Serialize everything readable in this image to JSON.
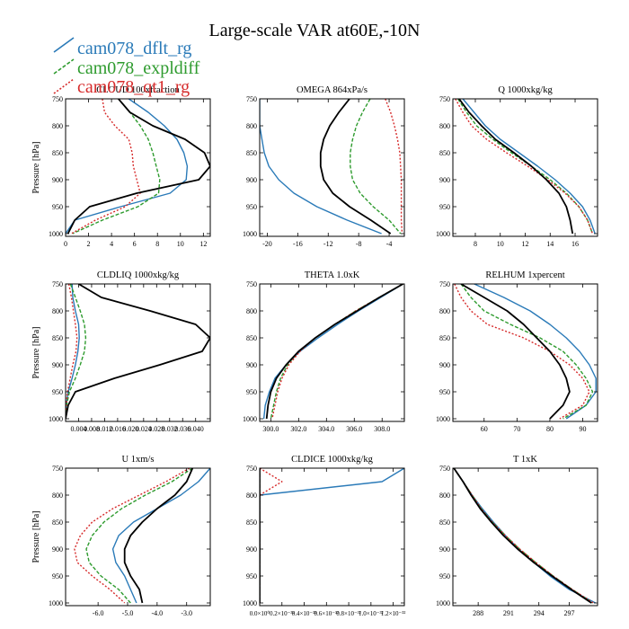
{
  "figure": {
    "title": "Large-scale VAR at60E,-10N",
    "legend": [
      {
        "name": "cam078_dflt_rg",
        "color": "#2a7ab8"
      },
      {
        "name": "cam078_expldiff",
        "color": "#2e9b2e"
      },
      {
        "name": "cam078_qt1_rg",
        "color": "#d62b2b"
      },
      {
        "name": "",
        "color": "#000000"
      }
    ]
  },
  "chart_data": [
    {
      "type": "line",
      "title": "CLOUD 100xfraction",
      "ylabel": "Pressure [hPa]",
      "ylim": [
        750,
        1005
      ],
      "y_ticks": [
        750,
        800,
        850,
        900,
        950,
        1000
      ],
      "y_tick_labels": [
        "750",
        "800",
        "850",
        "900",
        "950",
        "1000"
      ],
      "xlim": [
        0,
        12.6
      ],
      "x_ticks": [
        0,
        2,
        4,
        6,
        8,
        10,
        12
      ],
      "x_tick_labels": [
        "0",
        "2",
        "4",
        "6",
        "8",
        "10",
        "12"
      ],
      "y": [
        750,
        775,
        800,
        825,
        850,
        875,
        900,
        925,
        950,
        975,
        1000
      ],
      "series": [
        {
          "x": [
            5.5,
            7.2,
            8.6,
            9.7,
            10.3,
            10.6,
            10.5,
            9.1,
            4.8,
            0.8,
            0.0
          ],
          "color": "#2a7ab8",
          "dash": false
        },
        {
          "x": [
            4.6,
            5.6,
            6.5,
            7.2,
            7.6,
            7.9,
            8.2,
            8.1,
            6.3,
            3.2,
            0.6
          ],
          "color": "#2e9b2e",
          "dash": true
        },
        {
          "x": [
            3.2,
            3.4,
            4.3,
            5.5,
            5.8,
            5.9,
            6.2,
            6.5,
            5.2,
            2.6,
            0.5
          ],
          "color": "#d62b2b",
          "dash": true
        },
        {
          "x": [
            4.6,
            5.6,
            7.6,
            10.4,
            12.1,
            12.6,
            11.6,
            6.2,
            2.1,
            0.8,
            0.2
          ],
          "color": "#000000",
          "dash": false
        }
      ]
    },
    {
      "type": "line",
      "title": "OMEGA 864xPa/s",
      "ylabel": "",
      "ylim": [
        750,
        1005
      ],
      "y_ticks": [
        750,
        800,
        850,
        900,
        950,
        1000
      ],
      "y_tick_labels": [
        "750",
        "800",
        "850",
        "900",
        "950",
        "1000"
      ],
      "xlim": [
        -21,
        -2
      ],
      "x_ticks": [
        -20,
        -16,
        -12,
        -8,
        -4
      ],
      "x_tick_labels": [
        "-20",
        "-16",
        "-12",
        "-8",
        "-4"
      ],
      "y": [
        750,
        775,
        800,
        825,
        850,
        875,
        900,
        925,
        950,
        975,
        1000
      ],
      "series": [
        {
          "x": [
            -21,
            -21,
            -21,
            -20.7,
            -20.4,
            -19.8,
            -18.5,
            -16.5,
            -13.5,
            -9.5,
            -5.0
          ],
          "color": "#2a7ab8",
          "dash": false
        },
        {
          "x": [
            -6.5,
            -7.5,
            -8.3,
            -8.8,
            -9.1,
            -9.1,
            -8.8,
            -7.8,
            -6.1,
            -4.0,
            -2.5
          ],
          "color": "#2e9b2e",
          "dash": true
        },
        {
          "x": [
            -4.5,
            -3.8,
            -3.3,
            -2.9,
            -2.6,
            -2.5,
            -2.4,
            -2.4,
            -2.4,
            -2.4,
            -2.3
          ],
          "color": "#d62b2b",
          "dash": true
        },
        {
          "x": [
            -9.2,
            -10.6,
            -11.8,
            -12.6,
            -13.0,
            -13.0,
            -12.6,
            -11.4,
            -9.2,
            -6.4,
            -3.8
          ],
          "color": "#000000",
          "dash": false
        }
      ]
    },
    {
      "type": "line",
      "title": "Q 1000xkg/kg",
      "ylabel": "",
      "ylim": [
        750,
        1005
      ],
      "y_ticks": [
        750,
        800,
        850,
        900,
        950,
        1000
      ],
      "y_tick_labels": [
        "750",
        "800",
        "850",
        "900",
        "950",
        "1000"
      ],
      "xlim": [
        6.2,
        17.8
      ],
      "x_ticks": [
        8,
        10,
        12,
        14,
        16
      ],
      "x_tick_labels": [
        "8",
        "10",
        "12",
        "14",
        "16"
      ],
      "y": [
        750,
        775,
        800,
        825,
        850,
        875,
        900,
        925,
        950,
        975,
        1000
      ],
      "series": [
        {
          "x": [
            7.0,
            7.9,
            8.8,
            10.0,
            11.5,
            13.0,
            14.4,
            15.6,
            16.6,
            17.2,
            17.6
          ],
          "color": "#2a7ab8",
          "dash": false
        },
        {
          "x": [
            6.6,
            7.3,
            8.1,
            9.4,
            10.9,
            12.5,
            14.0,
            15.3,
            16.3,
            17.0,
            17.4
          ],
          "color": "#2e9b2e",
          "dash": true
        },
        {
          "x": [
            6.4,
            7.0,
            7.7,
            8.9,
            10.5,
            12.2,
            13.8,
            15.2,
            16.3,
            17.0,
            17.4
          ],
          "color": "#d62b2b",
          "dash": true
        },
        {
          "x": [
            6.7,
            7.5,
            8.5,
            9.6,
            11.1,
            12.5,
            13.7,
            14.7,
            15.3,
            15.6,
            15.8
          ],
          "color": "#000000",
          "dash": false
        }
      ]
    },
    {
      "type": "line",
      "title": "CLDLIQ 1000xkg/kg",
      "ylabel": "Pressure [hPa]",
      "ylim": [
        750,
        1005
      ],
      "y_ticks": [
        750,
        800,
        850,
        900,
        950,
        1000
      ],
      "y_tick_labels": [
        "750",
        "800",
        "850",
        "900",
        "950",
        "1000"
      ],
      "xlim": [
        0,
        0.0445
      ],
      "x_ticks": [
        0.004,
        0.008,
        0.012,
        0.016,
        0.02,
        0.024,
        0.028,
        0.032,
        0.036,
        0.04
      ],
      "x_tick_labels": [
        "0.004",
        "0.008",
        "0.012",
        "0.016",
        "0.020",
        "0.024",
        "0.028",
        "0.032",
        "0.036",
        "0.040"
      ],
      "y": [
        750,
        775,
        800,
        825,
        850,
        875,
        900,
        925,
        950,
        975,
        1000
      ],
      "series": [
        {
          "x": [
            0.002,
            0.0022,
            0.003,
            0.004,
            0.0042,
            0.0038,
            0.003,
            0.002,
            0.0008,
            0.0002,
            0.0
          ],
          "color": "#2a7ab8",
          "dash": false
        },
        {
          "x": [
            0.0015,
            0.003,
            0.0045,
            0.0058,
            0.0062,
            0.0058,
            0.0045,
            0.003,
            0.0012,
            0.0003,
            0.0
          ],
          "color": "#2e9b2e",
          "dash": true
        },
        {
          "x": [
            0.001,
            0.0018,
            0.0024,
            0.003,
            0.0035,
            0.0032,
            0.0022,
            0.0014,
            0.0006,
            0.0002,
            0.0
          ],
          "color": "#d62b2b",
          "dash": true
        },
        {
          "x": [
            0.004,
            0.011,
            0.026,
            0.04,
            0.0445,
            0.042,
            0.029,
            0.015,
            0.003,
            0.0008,
            0.0
          ],
          "color": "#000000",
          "dash": false
        }
      ]
    },
    {
      "type": "line",
      "title": "THETA 1.0xK",
      "ylabel": "",
      "ylim": [
        750,
        1005
      ],
      "y_ticks": [
        750,
        800,
        850,
        900,
        950,
        1000
      ],
      "y_tick_labels": [
        "750",
        "800",
        "850",
        "900",
        "950",
        "1000"
      ],
      "xlim": [
        299.2,
        309.6
      ],
      "x_ticks": [
        300.0,
        302.0,
        304.0,
        306.0,
        308.0
      ],
      "x_tick_labels": [
        "300.0",
        "302.0",
        "304.0",
        "306.0",
        "308.0"
      ],
      "y": [
        750,
        775,
        800,
        825,
        850,
        875,
        900,
        925,
        950,
        975,
        1000
      ],
      "series": [
        {
          "x": [
            309.5,
            307.9,
            306.3,
            304.8,
            303.4,
            302.1,
            301.1,
            300.3,
            299.9,
            299.6,
            299.5
          ],
          "color": "#2a7ab8",
          "dash": false
        },
        {
          "x": [
            309.5,
            307.8,
            306.1,
            304.6,
            303.2,
            302.0,
            301.2,
            300.7,
            300.4,
            300.2,
            300.0
          ],
          "color": "#2e9b2e",
          "dash": true
        },
        {
          "x": [
            309.5,
            307.8,
            306.1,
            304.6,
            303.2,
            302.1,
            301.3,
            300.8,
            300.5,
            300.3,
            300.1
          ],
          "color": "#d62b2b",
          "dash": true
        },
        {
          "x": [
            309.5,
            307.8,
            306.2,
            304.6,
            303.2,
            302.0,
            301.1,
            300.4,
            300.0,
            299.8,
            299.7
          ],
          "color": "#000000",
          "dash": false
        }
      ]
    },
    {
      "type": "line",
      "title": "RELHUM 1xpercent",
      "ylabel": "",
      "ylim": [
        750,
        1005
      ],
      "y_ticks": [
        750,
        800,
        850,
        900,
        950,
        1000
      ],
      "y_tick_labels": [
        "750",
        "800",
        "850",
        "900",
        "950",
        "1000"
      ],
      "xlim": [
        50.5,
        94.5
      ],
      "x_ticks": [
        60,
        70,
        80,
        90
      ],
      "x_tick_labels": [
        "60",
        "70",
        "80",
        "90"
      ],
      "y": [
        750,
        775,
        800,
        825,
        850,
        875,
        900,
        925,
        950,
        975,
        1000
      ],
      "series": [
        {
          "x": [
            57,
            66,
            74,
            80,
            85,
            89,
            92,
            94,
            94,
            91,
            85
          ],
          "color": "#2a7ab8",
          "dash": false
        },
        {
          "x": [
            53,
            56,
            60,
            68,
            77,
            84,
            88,
            91,
            93,
            91,
            84
          ],
          "color": "#2e9b2e",
          "dash": true
        },
        {
          "x": [
            51,
            53,
            56,
            61,
            72,
            80,
            86,
            90,
            92,
            90,
            83
          ],
          "color": "#d62b2b",
          "dash": true
        },
        {
          "x": [
            53,
            60,
            67,
            72,
            76,
            80,
            83,
            85,
            86,
            84,
            80
          ],
          "color": "#000000",
          "dash": false
        }
      ]
    },
    {
      "type": "line",
      "title": "U 1xm/s",
      "ylabel": "Pressure [hPa]",
      "ylim": [
        750,
        1005
      ],
      "y_ticks": [
        750,
        800,
        850,
        900,
        950,
        1000
      ],
      "y_tick_labels": [
        "750",
        "800",
        "850",
        "900",
        "950",
        "1000"
      ],
      "xlim": [
        -7.1,
        -2.2
      ],
      "x_ticks": [
        -6.0,
        -5.0,
        -4.0,
        -3.0
      ],
      "x_tick_labels": [
        "-6.0",
        "-5.0",
        "-4.0",
        "-3.0"
      ],
      "y": [
        750,
        775,
        800,
        825,
        850,
        875,
        900,
        925,
        950,
        975,
        1000
      ],
      "series": [
        {
          "x": [
            -2.2,
            -2.6,
            -3.2,
            -4.0,
            -4.8,
            -5.3,
            -5.5,
            -5.4,
            -5.1,
            -4.9,
            -4.7
          ],
          "color": "#2a7ab8",
          "dash": false
        },
        {
          "x": [
            -2.8,
            -3.5,
            -4.4,
            -5.2,
            -5.8,
            -6.2,
            -6.4,
            -6.3,
            -5.9,
            -5.3,
            -4.9
          ],
          "color": "#2e9b2e",
          "dash": true
        },
        {
          "x": [
            -2.9,
            -3.7,
            -4.6,
            -5.5,
            -6.2,
            -6.6,
            -6.8,
            -6.7,
            -6.2,
            -5.6,
            -5.1
          ],
          "color": "#d62b2b",
          "dash": true
        },
        {
          "x": [
            -2.8,
            -3.0,
            -3.4,
            -4.0,
            -4.5,
            -4.9,
            -5.1,
            -5.1,
            -4.9,
            -4.6,
            -4.5
          ],
          "color": "#000000",
          "dash": false
        }
      ]
    },
    {
      "type": "line",
      "title": "CLDICE 1000xkg/kg",
      "ylabel": "",
      "ylim": [
        750,
        1005
      ],
      "y_ticks": [
        750,
        800,
        850,
        900,
        950,
        1000
      ],
      "y_tick_labels": [
        "750",
        "800",
        "850",
        "900",
        "950",
        "1000"
      ],
      "xlim": [
        0,
        1.3e-32
      ],
      "x_ticks": [
        0,
        2e-33,
        4e-33,
        6e-33,
        8e-33,
        1e-32,
        1.2e-32
      ],
      "x_tick_labels": [
        "0.0×10⁰",
        "0.2×10⁻³²",
        "0.4×10⁻³²",
        "0.6×10⁻³²",
        "0.8×10⁻³²",
        "1.0×10⁻³²",
        "1.2×10⁻³²"
      ],
      "y": [
        750,
        775,
        800,
        825,
        850,
        875,
        900,
        925,
        950,
        975,
        1000
      ],
      "series": [
        {
          "x": [
            1.3e-32,
            1.1e-32,
            0,
            0,
            0,
            0,
            0,
            0,
            0,
            0,
            0
          ],
          "color": "#2a7ab8",
          "dash": false
        },
        {
          "x": [
            0,
            0,
            0,
            0,
            0,
            0,
            0,
            0,
            0,
            0,
            0
          ],
          "color": "#2e9b2e",
          "dash": true
        },
        {
          "x": [
            0,
            2e-33,
            0,
            0,
            0,
            0,
            0,
            0,
            0,
            0,
            0
          ],
          "color": "#d62b2b",
          "dash": true
        },
        {
          "x": [
            0,
            0,
            0,
            0,
            0,
            0,
            0,
            0,
            0,
            0,
            0
          ],
          "color": "#000000",
          "dash": false
        }
      ]
    },
    {
      "type": "line",
      "title": "T 1xK",
      "ylabel": "",
      "ylim": [
        750,
        1005
      ],
      "y_ticks": [
        750,
        800,
        850,
        900,
        950,
        1000
      ],
      "y_tick_labels": [
        "750",
        "800",
        "850",
        "900",
        "950",
        "1000"
      ],
      "xlim": [
        285.5,
        299.8
      ],
      "x_ticks": [
        288,
        291,
        294,
        297
      ],
      "x_tick_labels": [
        "288",
        "291",
        "294",
        "297"
      ],
      "y": [
        750,
        775,
        800,
        825,
        850,
        875,
        900,
        925,
        950,
        975,
        1000
      ],
      "series": [
        {
          "x": [
            285.6,
            286.5,
            287.4,
            288.4,
            289.5,
            290.7,
            292.0,
            293.5,
            295.1,
            297.0,
            299.6
          ],
          "color": "#2a7ab8",
          "dash": false
        },
        {
          "x": [
            285.6,
            286.5,
            287.4,
            288.3,
            289.4,
            290.7,
            292.1,
            293.7,
            295.4,
            297.3,
            299.3
          ],
          "color": "#2e9b2e",
          "dash": true
        },
        {
          "x": [
            285.6,
            286.5,
            287.4,
            288.3,
            289.4,
            290.7,
            292.1,
            293.7,
            295.4,
            297.3,
            299.4
          ],
          "color": "#d62b2b",
          "dash": true
        },
        {
          "x": [
            285.6,
            286.5,
            287.3,
            288.2,
            289.3,
            290.5,
            291.9,
            293.5,
            295.3,
            297.2,
            299.2
          ],
          "color": "#000000",
          "dash": false
        }
      ]
    }
  ]
}
